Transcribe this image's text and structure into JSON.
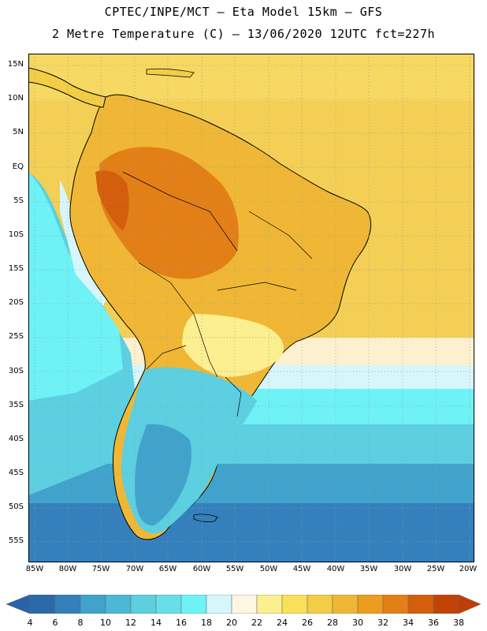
{
  "header": {
    "title_line1": "CPTEC/INPE/MCT –  Eta Model 15km – GFS",
    "title_line2": "2 Metre Temperature (C) – 13/06/2020 12UTC fct=227h"
  },
  "map": {
    "lat_labels": [
      "15N",
      "10N",
      "5N",
      "EQ",
      "5S",
      "10S",
      "15S",
      "20S",
      "25S",
      "30S",
      "35S",
      "40S",
      "45S",
      "50S",
      "55S"
    ],
    "lon_labels": [
      "85W",
      "80W",
      "75W",
      "70W",
      "65W",
      "60W",
      "55W",
      "50W",
      "45W",
      "40W",
      "35W",
      "30W",
      "25W",
      "20W"
    ]
  },
  "colorbar": {
    "labels": [
      "4",
      "6",
      "8",
      "10",
      "12",
      "14",
      "16",
      "18",
      "20",
      "22",
      "24",
      "26",
      "28",
      "30",
      "32",
      "34",
      "36",
      "38"
    ],
    "colors": [
      "#2b6aa8",
      "#3380bd",
      "#41a3cc",
      "#4cb8d6",
      "#5ccfe0",
      "#66dfe8",
      "#6ef2f6",
      "#d6f6fb",
      "#fdf6e2",
      "#fbef90",
      "#f8e05a",
      "#f2cd45",
      "#efb735",
      "#ec9d1e",
      "#e37f17",
      "#d35f0d",
      "#c24306"
    ],
    "end_low_color": "#2962a8",
    "end_high_color": "#c13d06"
  }
}
